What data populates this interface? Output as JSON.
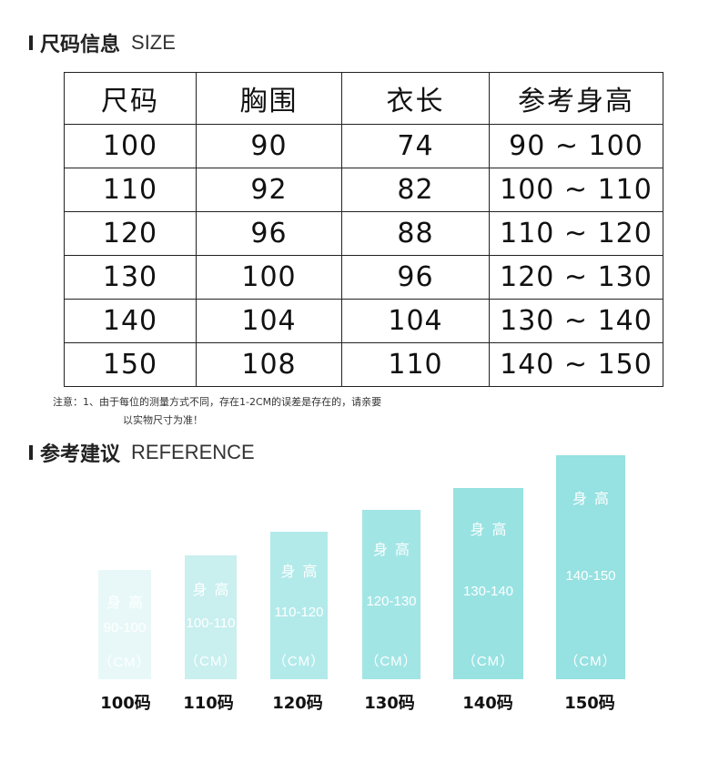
{
  "size_section": {
    "title_cn": "尺码信息",
    "title_en": "SIZE"
  },
  "table": {
    "headers": [
      "尺码",
      "胸围",
      "衣长",
      "参考身高"
    ],
    "rows": [
      [
        "100",
        "90",
        "74",
        "90 ~ 100"
      ],
      [
        "110",
        "92",
        "82",
        "100 ~ 110"
      ],
      [
        "120",
        "96",
        "88",
        "110 ~ 120"
      ],
      [
        "130",
        "100",
        "96",
        "120 ~ 130"
      ],
      [
        "140",
        "104",
        "104",
        "130 ~ 140"
      ],
      [
        "150",
        "108",
        "110",
        "140 ~ 150"
      ]
    ]
  },
  "note": {
    "line1": "注意：1、由于每位的测量方式不同，存在1-2CM的误差是存在的，请亲要",
    "line2": "以实物尺寸为准！"
  },
  "reference_section": {
    "title_cn": "参考建议",
    "title_en": "REFERENCE"
  },
  "bars": [
    {
      "label": "身高",
      "range": "90-100",
      "unit": "（CM）",
      "caption": "100码",
      "color": "#e8f8f8"
    },
    {
      "label": "身高",
      "range": "100-110",
      "unit": "（CM）",
      "caption": "110码",
      "color": "#c9efef"
    },
    {
      "label": "身高",
      "range": "110-120",
      "unit": "（CM）",
      "caption": "120码",
      "color": "#b2eaea"
    },
    {
      "label": "身高",
      "range": "120-130",
      "unit": "（CM）",
      "caption": "130码",
      "color": "#a2e5e5"
    },
    {
      "label": "身高",
      "range": "130-140",
      "unit": "（CM）",
      "caption": "140码",
      "color": "#98e2e2"
    },
    {
      "label": "身高",
      "range": "140-150",
      "unit": "（CM）",
      "caption": "150码",
      "color": "#96e1e1"
    }
  ]
}
